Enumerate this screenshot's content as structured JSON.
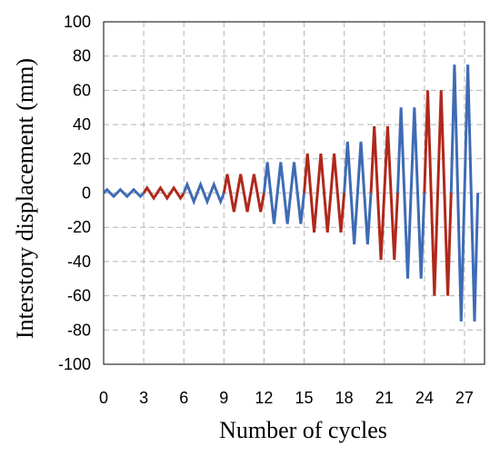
{
  "chart_data": {
    "type": "line",
    "title": "",
    "xlabel": "Number of cycles",
    "ylabel": "Interstory displacement (mm)",
    "xlim": [
      0,
      28.5
    ],
    "ylim": [
      -100,
      100
    ],
    "x_ticks": [
      "0",
      "3",
      "6",
      "9",
      "12",
      "15",
      "18",
      "21",
      "24",
      "27"
    ],
    "y_ticks": [
      "100",
      "80",
      "60",
      "40",
      "20",
      "0",
      "-20",
      "-40",
      "-60",
      "-80",
      "-100"
    ],
    "grid": true,
    "legend": "none",
    "colors": {
      "blue": "#3f6bb5",
      "red": "#b0281c",
      "grid": "#b4b4b4"
    },
    "segments": [
      {
        "color": "blue",
        "cycles": [
          0,
          3
        ],
        "amplitude": 2
      },
      {
        "color": "red",
        "cycles": [
          3,
          6
        ],
        "amplitude": 3
      },
      {
        "color": "blue",
        "cycles": [
          6,
          9
        ],
        "amplitude": 5
      },
      {
        "color": "red",
        "cycles": [
          9,
          12
        ],
        "amplitude": 11
      },
      {
        "color": "blue",
        "cycles": [
          12,
          15
        ],
        "amplitude": 18
      },
      {
        "color": "red",
        "cycles": [
          15,
          18
        ],
        "amplitude": 23
      },
      {
        "color": "blue",
        "cycles": [
          18,
          20
        ],
        "amplitude": 30
      },
      {
        "color": "red",
        "cycles": [
          20,
          22
        ],
        "amplitude": 39
      },
      {
        "color": "blue",
        "cycles": [
          22,
          24
        ],
        "amplitude": 50
      },
      {
        "color": "red",
        "cycles": [
          24,
          26
        ],
        "amplitude": 60
      },
      {
        "color": "blue",
        "cycles": [
          26,
          28
        ],
        "amplitude": 75
      }
    ]
  }
}
